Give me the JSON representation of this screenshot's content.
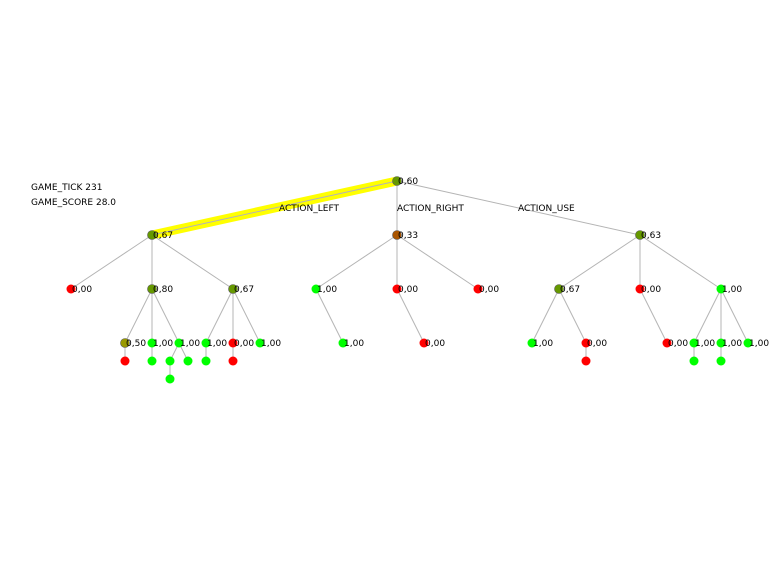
{
  "game_info": {
    "tick_label": "GAME_TICK 231",
    "score_label": "GAME_SCORE 28.0"
  },
  "actions": {
    "left": "ACTION_LEFT",
    "right": "ACTION_RIGHT",
    "use": "ACTION_USE"
  },
  "colors": {
    "edge": "#b4b4b4",
    "highlight": "#ffff00",
    "green": "#00ff00",
    "red": "#ff0000",
    "mix_green_dark": "#669900",
    "mix_olive": "#999900",
    "mix_brown": "#aa5500",
    "mix_red_dark": "#cc3300",
    "node_stroke": "#555555"
  },
  "nodes": [
    {
      "id": "root",
      "label": "0,60",
      "color": "mix_green_dark"
    },
    {
      "id": "L",
      "label": "0,67",
      "color": "mix_green_dark"
    },
    {
      "id": "R",
      "label": "0,33",
      "color": "mix_brown"
    },
    {
      "id": "U",
      "label": "0,63",
      "color": "mix_green_dark"
    },
    {
      "id": "L1",
      "label": "0,00",
      "color": "red"
    },
    {
      "id": "L2",
      "label": "0,80",
      "color": "mix_green_dark"
    },
    {
      "id": "L3",
      "label": "0,67",
      "color": "mix_green_dark"
    },
    {
      "id": "R1",
      "label": "1,00",
      "color": "green"
    },
    {
      "id": "R2",
      "label": "0,00",
      "color": "red"
    },
    {
      "id": "R3",
      "label": "0,00",
      "color": "red"
    },
    {
      "id": "U1",
      "label": "0,67",
      "color": "mix_green_dark"
    },
    {
      "id": "U2",
      "label": "0,00",
      "color": "red"
    },
    {
      "id": "U3",
      "label": "1,00",
      "color": "green"
    },
    {
      "id": "L2a",
      "label": "0,50",
      "color": "mix_olive"
    },
    {
      "id": "L2b",
      "label": "1,00",
      "color": "green"
    },
    {
      "id": "L2c",
      "label": "1,00",
      "color": "green"
    },
    {
      "id": "L3a",
      "label": "1,00",
      "color": "green"
    },
    {
      "id": "L3b",
      "label": "0,00",
      "color": "red"
    },
    {
      "id": "L3c",
      "label": "1,00",
      "color": "green"
    },
    {
      "id": "R1a",
      "label": "1,00",
      "color": "green"
    },
    {
      "id": "R2a",
      "label": "0,00",
      "color": "red"
    },
    {
      "id": "U1a",
      "label": "1,00",
      "color": "green"
    },
    {
      "id": "U1b",
      "label": "0,00",
      "color": "red"
    },
    {
      "id": "U2a",
      "label": "0,00",
      "color": "red"
    },
    {
      "id": "U3a",
      "label": "1,00",
      "color": "green"
    },
    {
      "id": "U3b",
      "label": "1,00",
      "color": "green"
    },
    {
      "id": "U3c",
      "label": "1,00",
      "color": "green"
    },
    {
      "id": "d1",
      "label": "",
      "color": "red"
    },
    {
      "id": "d2",
      "label": "",
      "color": "green"
    },
    {
      "id": "d3",
      "label": "",
      "color": "green"
    },
    {
      "id": "d4",
      "label": "",
      "color": "green"
    },
    {
      "id": "d4b",
      "label": "",
      "color": "green"
    },
    {
      "id": "d5",
      "label": "",
      "color": "green"
    },
    {
      "id": "d6",
      "label": "",
      "color": "red"
    },
    {
      "id": "d7",
      "label": "",
      "color": "red"
    },
    {
      "id": "d8",
      "label": "",
      "color": "green"
    },
    {
      "id": "d9",
      "label": "",
      "color": "green"
    }
  ],
  "edges": [
    [
      "root",
      "L"
    ],
    [
      "root",
      "R"
    ],
    [
      "root",
      "U"
    ],
    [
      "L",
      "L1"
    ],
    [
      "L",
      "L2"
    ],
    [
      "L",
      "L3"
    ],
    [
      "R",
      "R1"
    ],
    [
      "R",
      "R2"
    ],
    [
      "R",
      "R3"
    ],
    [
      "U",
      "U1"
    ],
    [
      "U",
      "U2"
    ],
    [
      "U",
      "U3"
    ],
    [
      "L2",
      "L2a"
    ],
    [
      "L2",
      "L2b"
    ],
    [
      "L2",
      "L2c"
    ],
    [
      "L3",
      "L3a"
    ],
    [
      "L3",
      "L3b"
    ],
    [
      "L3",
      "L3c"
    ],
    [
      "R1",
      "R1a"
    ],
    [
      "R2",
      "R2a"
    ],
    [
      "U1",
      "U1a"
    ],
    [
      "U1",
      "U1b"
    ],
    [
      "U2",
      "U2a"
    ],
    [
      "U3",
      "U3a"
    ],
    [
      "U3",
      "U3b"
    ],
    [
      "U3",
      "U3c"
    ],
    [
      "L2a",
      "d1"
    ],
    [
      "L2b",
      "d2"
    ],
    [
      "L2c",
      "d3"
    ],
    [
      "L2c",
      "d4"
    ],
    [
      "d3",
      "d4b"
    ],
    [
      "L3a",
      "d5"
    ],
    [
      "L3b",
      "d6"
    ],
    [
      "U1b",
      "d7"
    ],
    [
      "U3a",
      "d8"
    ],
    [
      "U3b",
      "d9"
    ]
  ],
  "highlighted_path": [
    "root",
    "L"
  ]
}
